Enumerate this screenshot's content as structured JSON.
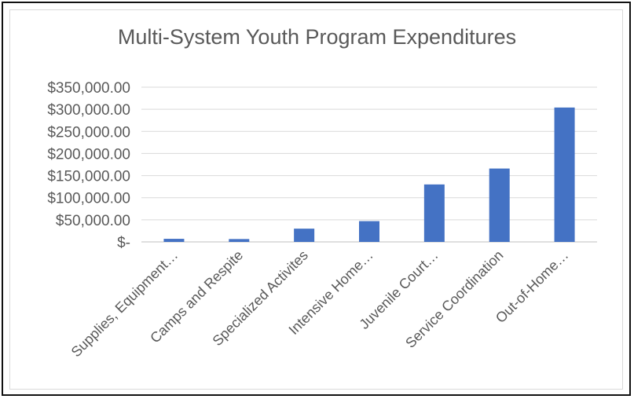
{
  "chart_data": {
    "type": "bar",
    "title": "Multi-System Youth Program Expenditures",
    "xlabel": "",
    "ylabel": "",
    "categories": [
      "Supplies, Equipment…",
      "Camps and Respite",
      "Specialized Activites",
      "Intensive Home…",
      "Juvenile Court…",
      "Service Coordination",
      "Out-of-Home…"
    ],
    "values": [
      7000,
      6500,
      30000,
      47000,
      130000,
      166000,
      304000
    ],
    "ylim": [
      0,
      350000
    ],
    "yticks": [
      0,
      50000,
      100000,
      150000,
      200000,
      250000,
      300000,
      350000
    ],
    "ytick_labels": [
      "$-",
      "$50,000.00",
      "$100,000.00",
      "$150,000.00",
      "$200,000.00",
      "$250,000.00",
      "$300,000.00",
      "$350,000.00"
    ],
    "grid": true,
    "legend": "none",
    "bar_color": "#4472c4",
    "grid_color": "#d9d9d9"
  }
}
